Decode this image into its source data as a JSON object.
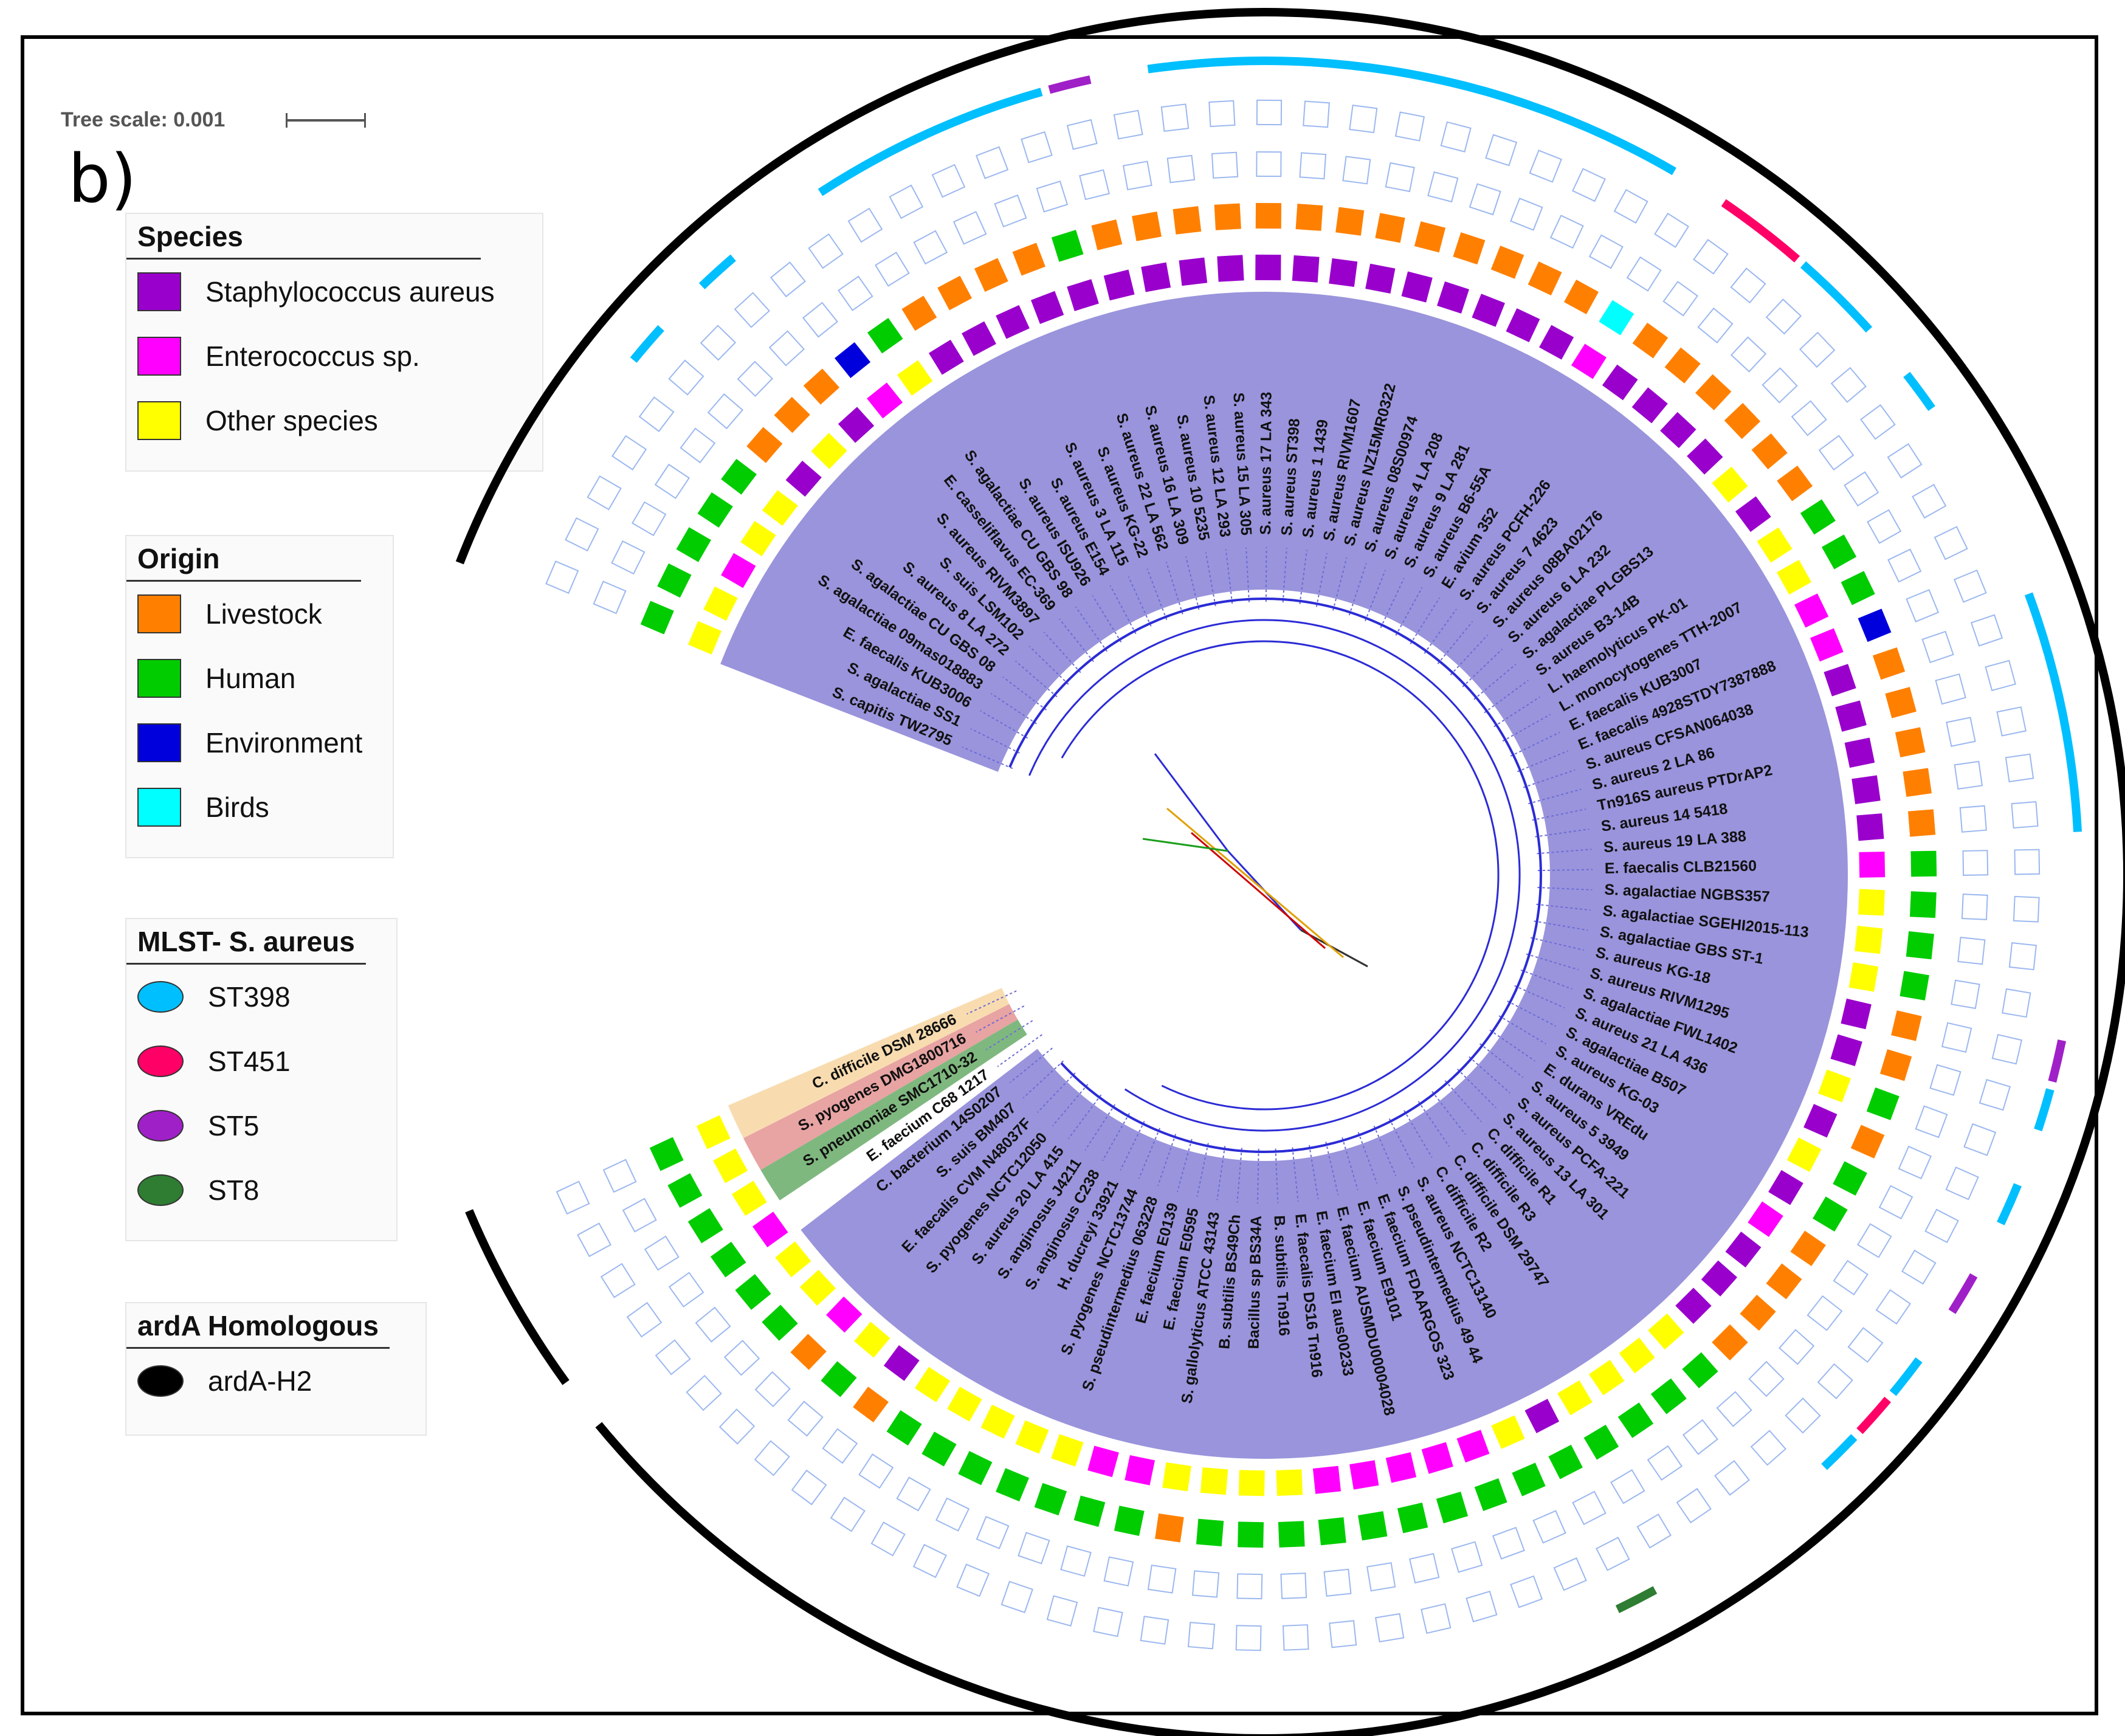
{
  "figure": {
    "panel_letter": "b)",
    "tree_scale_label": "Tree scale: 0.001"
  },
  "colors": {
    "staph": "#9900cc",
    "entero": "#ff00ff",
    "other": "#ffff00",
    "livestock": "#ff8000",
    "human": "#00cc00",
    "environment": "#0000dd",
    "birds": "#00ffff",
    "st398": "#00bfff",
    "st451": "#ff0066",
    "st5": "#a020c8",
    "st8": "#2e7d32",
    "ardA": "#000000",
    "clade_main": "#9a94dc",
    "clade_green": "#7fb87f",
    "clade_red": "#e8a3a3",
    "clade_orange": "#f8dcb0"
  },
  "legends": {
    "species": {
      "title": "Species",
      "items": [
        {
          "label": "Staphylococcus aureus",
          "color": "#9900cc"
        },
        {
          "label": "Enterococcus sp.",
          "color": "#ff00ff"
        },
        {
          "label": "Other species",
          "color": "#ffff00"
        }
      ]
    },
    "origin": {
      "title": "Origin",
      "items": [
        {
          "label": "Livestock",
          "color": "#ff8000"
        },
        {
          "label": "Human",
          "color": "#00cc00"
        },
        {
          "label": "Environment",
          "color": "#0000dd"
        },
        {
          "label": "Birds",
          "color": "#00ffff"
        }
      ]
    },
    "mlst": {
      "title": "MLST- S. aureus",
      "items": [
        {
          "label": "ST398",
          "color": "#00bfff"
        },
        {
          "label": "ST451",
          "color": "#ff0066"
        },
        {
          "label": "ST5",
          "color": "#a020c8"
        },
        {
          "label": "ST8",
          "color": "#2e7d32"
        }
      ]
    },
    "ardA": {
      "title": "ardA Homologous",
      "items": [
        {
          "label": "ardA-H2",
          "color": "#000000"
        }
      ]
    }
  },
  "taxa": [
    {
      "label": "S. capitis TW2795",
      "sp": "other",
      "origin": "human",
      "mlst": ""
    },
    {
      "label": "S. agalactiae SS1",
      "sp": "other",
      "origin": "human",
      "mlst": ""
    },
    {
      "label": "E. faecalis KUB3006",
      "sp": "entero",
      "origin": "human",
      "mlst": ""
    },
    {
      "label": "S. agalactiae 09mas018883",
      "sp": "other",
      "origin": "human",
      "mlst": ""
    },
    {
      "label": "S. agalactiae CU GBS 08",
      "sp": "other",
      "origin": "human",
      "mlst": ""
    },
    {
      "label": "S. aureus 8 LA 272",
      "sp": "staph",
      "origin": "livestock",
      "mlst": "st398"
    },
    {
      "label": "S. suis LSM102",
      "sp": "other",
      "origin": "livestock",
      "mlst": ""
    },
    {
      "label": "S. aureus RIVM3897",
      "sp": "staph",
      "origin": "livestock",
      "mlst": "st398"
    },
    {
      "label": "E. casseliflavus EC-369",
      "sp": "entero",
      "origin": "environment",
      "mlst": ""
    },
    {
      "label": "S. agalactiae CU GBS 98",
      "sp": "other",
      "origin": "human",
      "mlst": ""
    },
    {
      "label": "S. aureus ISU926",
      "sp": "staph",
      "origin": "livestock",
      "mlst": "st398"
    },
    {
      "label": "S. aureus E154",
      "sp": "staph",
      "origin": "livestock",
      "mlst": "st398"
    },
    {
      "label": "S. aureus 3 LA 115",
      "sp": "staph",
      "origin": "livestock",
      "mlst": "st398"
    },
    {
      "label": "S. aureus KG-22",
      "sp": "staph",
      "origin": "livestock",
      "mlst": "st398"
    },
    {
      "label": "S. aureus 22 LA 562",
      "sp": "staph",
      "origin": "human",
      "mlst": "st398"
    },
    {
      "label": "S. aureus 16 LA 309",
      "sp": "staph",
      "origin": "livestock",
      "mlst": "st5"
    },
    {
      "label": "S. aureus 10 5235",
      "sp": "staph",
      "origin": "livestock",
      "mlst": ""
    },
    {
      "label": "S. aureus 12 LA 293",
      "sp": "staph",
      "origin": "livestock",
      "mlst": "st398"
    },
    {
      "label": "S. aureus 15 LA 305",
      "sp": "staph",
      "origin": "livestock",
      "mlst": "st398"
    },
    {
      "label": "S. aureus 17 LA 343",
      "sp": "staph",
      "origin": "livestock",
      "mlst": "st398"
    },
    {
      "label": "S. aureus ST398",
      "sp": "staph",
      "origin": "livestock",
      "mlst": "st398"
    },
    {
      "label": "S. aureus 1 1439",
      "sp": "staph",
      "origin": "livestock",
      "mlst": "st398"
    },
    {
      "label": "S. aureus RIVM1607",
      "sp": "staph",
      "origin": "livestock",
      "mlst": "st398"
    },
    {
      "label": "S. aureus NZ15MR0322",
      "sp": "staph",
      "origin": "livestock",
      "mlst": "st398"
    },
    {
      "label": "S. aureus 08S00974",
      "sp": "staph",
      "origin": "livestock",
      "mlst": "st398"
    },
    {
      "label": "S. aureus 4 LA 208",
      "sp": "staph",
      "origin": "livestock",
      "mlst": "st398"
    },
    {
      "label": "S. aureus 9 LA 281",
      "sp": "staph",
      "origin": "livestock",
      "mlst": "st398"
    },
    {
      "label": "S. aureus B6-55A",
      "sp": "staph",
      "origin": "livestock",
      "mlst": "st398"
    },
    {
      "label": "E. avium 352",
      "sp": "entero",
      "origin": "birds",
      "mlst": ""
    },
    {
      "label": "S. aureus PCFH-226",
      "sp": "staph",
      "origin": "livestock",
      "mlst": "st451"
    },
    {
      "label": "S. aureus 7 4623",
      "sp": "staph",
      "origin": "livestock",
      "mlst": "st451"
    },
    {
      "label": "S. aureus 08BA02176",
      "sp": "staph",
      "origin": "livestock",
      "mlst": "st398"
    },
    {
      "label": "S. aureus 6 LA 232",
      "sp": "staph",
      "origin": "livestock",
      "mlst": "st398"
    },
    {
      "label": "S. agalactiae PLGBS13",
      "sp": "other",
      "origin": "livestock",
      "mlst": ""
    },
    {
      "label": "S. aureus B3-14B",
      "sp": "staph",
      "origin": "livestock",
      "mlst": "st398"
    },
    {
      "label": "L. haemolyticus PK-01",
      "sp": "other",
      "origin": "human",
      "mlst": ""
    },
    {
      "label": "L. monocytogenes TTH-2007",
      "sp": "other",
      "origin": "human",
      "mlst": ""
    },
    {
      "label": "E. faecalis KUB3007",
      "sp": "entero",
      "origin": "human",
      "mlst": ""
    },
    {
      "label": "E. faecalis 4928STDY7387888",
      "sp": "entero",
      "origin": "environment",
      "mlst": ""
    },
    {
      "label": "S. aureus CFSAN064038",
      "sp": "staph",
      "origin": "livestock",
      "mlst": "st398"
    },
    {
      "label": "S. aureus 2 LA 86",
      "sp": "staph",
      "origin": "livestock",
      "mlst": "st398"
    },
    {
      "label": "Tn916S aureus PTDrAP2",
      "sp": "staph",
      "origin": "livestock",
      "mlst": "st398"
    },
    {
      "label": "S. aureus 14 5418",
      "sp": "staph",
      "origin": "livestock",
      "mlst": "st398"
    },
    {
      "label": "S. aureus 19 LA 388",
      "sp": "staph",
      "origin": "livestock",
      "mlst": "st398"
    },
    {
      "label": "E. faecalis CLB21560",
      "sp": "entero",
      "origin": "human",
      "mlst": ""
    },
    {
      "label": "S. agalactiae NGBS357",
      "sp": "other",
      "origin": "human",
      "mlst": ""
    },
    {
      "label": "S. agalactiae SGEHI2015-113",
      "sp": "other",
      "origin": "human",
      "mlst": ""
    },
    {
      "label": "S. agalactiae GBS ST-1",
      "sp": "other",
      "origin": "human",
      "mlst": ""
    },
    {
      "label": "S. aureus KG-18",
      "sp": "staph",
      "origin": "livestock",
      "mlst": "st5"
    },
    {
      "label": "S. aureus RIVM1295",
      "sp": "staph",
      "origin": "livestock",
      "mlst": "st398"
    },
    {
      "label": "S. agalactiae FWL1402",
      "sp": "other",
      "origin": "human",
      "mlst": ""
    },
    {
      "label": "S. aureus 21 LA 436",
      "sp": "staph",
      "origin": "livestock",
      "mlst": "st398"
    },
    {
      "label": "S. agalactiae B507",
      "sp": "other",
      "origin": "human",
      "mlst": ""
    },
    {
      "label": "S. aureus KG-03",
      "sp": "staph",
      "origin": "human",
      "mlst": "st5"
    },
    {
      "label": "E. durans VREdu",
      "sp": "entero",
      "origin": "livestock",
      "mlst": ""
    },
    {
      "label": "S. aureus 5 3949",
      "sp": "staph",
      "origin": "livestock",
      "mlst": "st398"
    },
    {
      "label": "S. aureus PCFA-221",
      "sp": "staph",
      "origin": "livestock",
      "mlst": "st451"
    },
    {
      "label": "S. aureus 13 LA 301",
      "sp": "staph",
      "origin": "livestock",
      "mlst": "st398"
    },
    {
      "label": "C. difficile R1",
      "sp": "other",
      "origin": "human",
      "mlst": ""
    },
    {
      "label": "C. difficile R3",
      "sp": "other",
      "origin": "human",
      "mlst": ""
    },
    {
      "label": "C. difficile DSM 29747",
      "sp": "other",
      "origin": "human",
      "mlst": ""
    },
    {
      "label": "C. difficile R2",
      "sp": "other",
      "origin": "human",
      "mlst": ""
    },
    {
      "label": "S. aureus NCTC13140",
      "sp": "staph",
      "origin": "human",
      "mlst": "st8"
    },
    {
      "label": "S. pseudintermedius 49 44",
      "sp": "other",
      "origin": "human",
      "mlst": ""
    },
    {
      "label": "E. faecium FDAARGOS 323",
      "sp": "entero",
      "origin": "human",
      "mlst": ""
    },
    {
      "label": "E. faecium E9101",
      "sp": "entero",
      "origin": "human",
      "mlst": ""
    },
    {
      "label": "E. faecium AUSMDU00004028",
      "sp": "entero",
      "origin": "human",
      "mlst": ""
    },
    {
      "label": "E. faecium EI aus00233",
      "sp": "entero",
      "origin": "human",
      "mlst": ""
    },
    {
      "label": "E. faecalis DS16 Tn916",
      "sp": "entero",
      "origin": "human",
      "mlst": ""
    },
    {
      "label": "B. subtilis Tn916",
      "sp": "other",
      "origin": "human",
      "mlst": ""
    },
    {
      "label": "Bacillus sp BS34A",
      "sp": "other",
      "origin": "human",
      "mlst": ""
    },
    {
      "label": "B. subtilis BS49Ch",
      "sp": "other",
      "origin": "human",
      "mlst": ""
    },
    {
      "label": "S. gallolyticus ATCC 43143",
      "sp": "other",
      "origin": "livestock",
      "mlst": ""
    },
    {
      "label": "E. faecium E0595",
      "sp": "entero",
      "origin": "human",
      "mlst": ""
    },
    {
      "label": "E. faecium E0139",
      "sp": "entero",
      "origin": "human",
      "mlst": ""
    },
    {
      "label": "S. pseudintermedius 063228",
      "sp": "other",
      "origin": "human",
      "mlst": ""
    },
    {
      "label": "S. pyogenes NCTC13744",
      "sp": "other",
      "origin": "human",
      "mlst": ""
    },
    {
      "label": "H. ducreyi 33921",
      "sp": "other",
      "origin": "human",
      "mlst": ""
    },
    {
      "label": "S. anginosus C238",
      "sp": "other",
      "origin": "human",
      "mlst": ""
    },
    {
      "label": "S. anginosus J4211",
      "sp": "other",
      "origin": "human",
      "mlst": ""
    },
    {
      "label": "S. aureus 20 LA 415",
      "sp": "staph",
      "origin": "livestock",
      "mlst": ""
    },
    {
      "label": "S. pyogenes NCTC12050",
      "sp": "other",
      "origin": "human",
      "mlst": ""
    },
    {
      "label": "E. faecalis CVM N48037F",
      "sp": "entero",
      "origin": "livestock",
      "mlst": ""
    },
    {
      "label": "S. suis BM407",
      "sp": "other",
      "origin": "human",
      "mlst": ""
    },
    {
      "label": "C. bacterium 14S0207",
      "sp": "other",
      "origin": "human",
      "mlst": ""
    },
    {
      "label": "E. faecium C68 1217",
      "sp": "entero",
      "origin": "human",
      "mlst": ""
    },
    {
      "label": "S. pneumoniae SMC1710-32",
      "sp": "other",
      "origin": "human",
      "mlst": ""
    },
    {
      "label": "S. pyogenes DMG1800716",
      "sp": "other",
      "origin": "human",
      "mlst": ""
    },
    {
      "label": "C. difficile DSM 28666",
      "sp": "other",
      "origin": "human",
      "mlst": ""
    }
  ]
}
